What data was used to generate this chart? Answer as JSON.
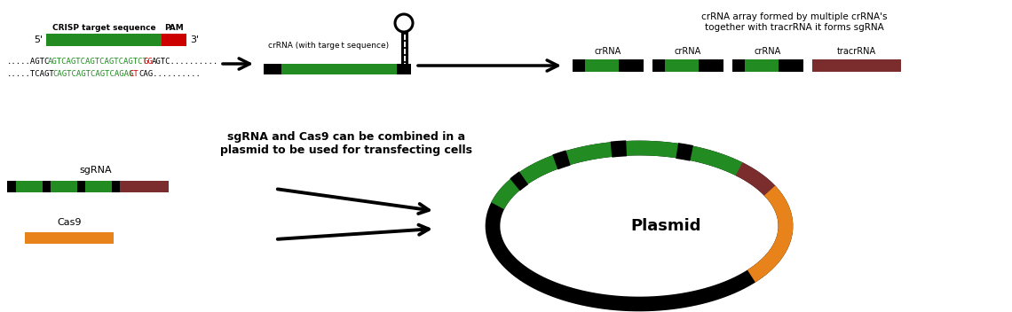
{
  "bg_color": "#ffffff",
  "green": "#228B22",
  "red": "#cc0000",
  "black": "#000000",
  "maroon": "#7B2D2D",
  "orange": "#E8821A",
  "seq_line1_parts": [
    {
      "text": ".....AGTC",
      "color": "#000000"
    },
    {
      "text": "AGTCAGTCAGTCAGTCAGTCT",
      "color": "#228B22"
    },
    {
      "text": "GG",
      "color": "#cc0000"
    },
    {
      "text": "AGTC..........",
      "color": "#000000"
    }
  ],
  "seq_line2_parts": [
    {
      "text": ".....TCAGT",
      "color": "#000000"
    },
    {
      "text": "CAGTCAGTCAGTCAGAG",
      "color": "#228B22"
    },
    {
      "text": "CT",
      "color": "#cc0000"
    },
    {
      "text": "CAG..........",
      "color": "#000000"
    }
  ],
  "label_crisp": "CRISP target sequence",
  "label_pam": "PAM",
  "label_5prime": "5'",
  "label_3prime": "3'",
  "label_crrna_with_seq": "crRNA (with targe t sequence)",
  "label_crrna_array_title": "crRNA array formed by multiple crRNA's\ntogether with tracrRNA it forms sgRNA",
  "label_crrna": "crRNA",
  "label_tracrrna": "tracrRNA",
  "label_sgRNA_cas9_text": "sgRNA and Cas9 can be combined in a\nplasmid to be used for transfecting cells",
  "label_sgRNA": "sgRNA",
  "label_cas9": "Cas9",
  "label_plasmid": "Plasmid",
  "fig_w": 11.4,
  "fig_h": 3.52,
  "dpi": 100
}
